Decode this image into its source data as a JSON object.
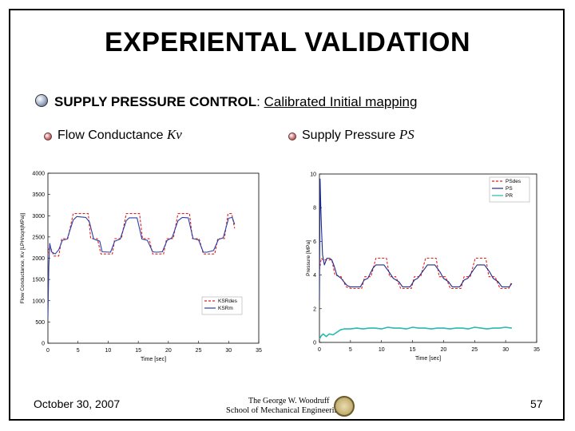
{
  "slide": {
    "title": "EXPERIENTAL VALIDATION",
    "main_label": "SUPPLY PRESSURE CONTROL",
    "main_sep": ": ",
    "main_link": "Calibrated Initial mapping",
    "sub_left_text": "Flow Conductance ",
    "sub_left_symbol": "Kv",
    "sub_right_text": "Supply Pressure ",
    "sub_right_symbol": "PS",
    "date": "October 30, 2007",
    "page": "57",
    "logo_line1": "The George W. Woodruff",
    "logo_line2": "School of Mechanical Engineering"
  },
  "chart_data": [
    {
      "type": "line",
      "xlabel": "Time [sec]",
      "ylabel": "Flow Conductance, Kv [LPH/sqrt(MPa)]",
      "xlim": [
        0,
        35
      ],
      "ylim": [
        0,
        4000
      ],
      "xticks": [
        0,
        5,
        10,
        15,
        20,
        25,
        30,
        35
      ],
      "yticks": [
        0,
        500,
        1000,
        1500,
        2000,
        2500,
        3000,
        3500,
        4000
      ],
      "legend_position": "bottom-right",
      "series": [
        {
          "name": "KSRdes",
          "color": "#e02020",
          "style": "dashed",
          "x": [
            0,
            0.3,
            1,
            1.8,
            2.3,
            3.3,
            4.2,
            4.6,
            6.7,
            7.1,
            8.2,
            8.8,
            10.7,
            11.1,
            12.2,
            13,
            15.2,
            15.7,
            16.8,
            17.4,
            19.2,
            19.7,
            20.8,
            21.6,
            23.5,
            24,
            25.1,
            25.8,
            27.7,
            28.2,
            29.3,
            29.9,
            30.5,
            31
          ],
          "y": [
            2100,
            2300,
            2050,
            2050,
            2460,
            2460,
            3050,
            3050,
            3050,
            2460,
            2460,
            2100,
            2100,
            2460,
            2460,
            3050,
            3050,
            2460,
            2460,
            2100,
            2100,
            2460,
            2460,
            3050,
            3050,
            2460,
            2460,
            2100,
            2100,
            2460,
            2460,
            3050,
            3050,
            2700
          ]
        },
        {
          "name": "KSRm",
          "color": "#2a3ea8",
          "style": "solid",
          "x": [
            0,
            0.15,
            0.3,
            0.6,
            1.2,
            1.8,
            2.4,
            3.2,
            4.2,
            4.8,
            6.3,
            6.9,
            7.6,
            8.6,
            9,
            10.4,
            11.1,
            12,
            13,
            13.5,
            14.8,
            15.6,
            16.5,
            17.4,
            18,
            19,
            19.8,
            20.6,
            21.6,
            22.3,
            23.3,
            24.1,
            25,
            25.8,
            26.4,
            27.5,
            28.3,
            29.1,
            30,
            30.6,
            31
          ],
          "y": [
            600,
            1800,
            2350,
            2150,
            2100,
            2200,
            2420,
            2450,
            2900,
            2980,
            2960,
            2850,
            2450,
            2400,
            2150,
            2140,
            2400,
            2450,
            2880,
            2950,
            2950,
            2450,
            2420,
            2150,
            2140,
            2150,
            2420,
            2480,
            2880,
            2960,
            2950,
            2460,
            2430,
            2140,
            2140,
            2180,
            2440,
            2480,
            2940,
            2960,
            2800
          ]
        }
      ]
    },
    {
      "type": "line",
      "xlabel": "Time [sec]",
      "ylabel": "Pressure [MPa]",
      "xlim": [
        0,
        35
      ],
      "ylim": [
        0,
        10
      ],
      "xticks": [
        0,
        5,
        10,
        15,
        20,
        25,
        30,
        35
      ],
      "yticks": [
        0,
        2,
        4,
        6,
        8,
        10
      ],
      "legend_position": "top-right",
      "series": [
        {
          "name": "PSdes",
          "color": "#e02020",
          "style": "dashed",
          "x": [
            0,
            0.3,
            0.6,
            2,
            2.5,
            3.5,
            4.3,
            5.1,
            6.8,
            7.3,
            8.3,
            9.1,
            10.8,
            11.3,
            12.3,
            13.1,
            14.8,
            15.3,
            16.3,
            17.1,
            18.8,
            19.3,
            20.3,
            21.1,
            22.8,
            23.3,
            24.3,
            25.1,
            26.8,
            27.3,
            28.3,
            29.1,
            30.5,
            31
          ],
          "y": [
            4.3,
            5,
            4.9,
            4.9,
            4,
            3.9,
            3.3,
            3.2,
            3.2,
            3.9,
            3.9,
            5,
            5,
            3.9,
            3.9,
            3.2,
            3.2,
            3.9,
            3.9,
            5,
            5,
            3.9,
            3.9,
            3.2,
            3.2,
            3.9,
            3.9,
            5,
            5,
            3.9,
            3.9,
            3.2,
            3.2,
            3.6
          ]
        },
        {
          "name": "PS",
          "color": "#1c2a8c",
          "style": "solid",
          "x": [
            0,
            0.1,
            0.2,
            0.35,
            0.5,
            0.8,
            1.2,
            1.6,
            2,
            2.4,
            2.8,
            3.5,
            4.4,
            4.9,
            5.3,
            6.6,
            7.2,
            7.8,
            8.6,
            9.1,
            10.4,
            11.2,
            11.9,
            12.8,
            13.4,
            14.6,
            15.3,
            15.8,
            16.8,
            17.4,
            18.6,
            19.4,
            20,
            20.8,
            21.4,
            22.6,
            23.3,
            23.9,
            24.8,
            25.4,
            26.6,
            27.4,
            28,
            28.8,
            29.4,
            30.6,
            31
          ],
          "y": [
            2.5,
            9.7,
            8.2,
            6.6,
            5.2,
            4.6,
            5,
            5,
            4.9,
            4.5,
            4,
            3.8,
            3.4,
            3.3,
            3.3,
            3.3,
            3.7,
            3.8,
            4.4,
            4.6,
            4.6,
            4.2,
            3.8,
            3.6,
            3.3,
            3.3,
            3.7,
            3.8,
            4.3,
            4.6,
            4.6,
            4.2,
            3.8,
            3.6,
            3.3,
            3.3,
            3.7,
            3.8,
            4.3,
            4.6,
            4.6,
            4.2,
            3.8,
            3.6,
            3.3,
            3.3,
            3.5
          ]
        },
        {
          "name": "PR",
          "color": "#2ab8b0",
          "style": "solid",
          "x": [
            0,
            0.3,
            0.6,
            1.1,
            1.6,
            2.2,
            2.8,
            3.4,
            4,
            5,
            6,
            7,
            8,
            9,
            10,
            11,
            12,
            13,
            14,
            15,
            16,
            17,
            18,
            19,
            20,
            21,
            22,
            23,
            24,
            25,
            26,
            27,
            28,
            29,
            30,
            31
          ],
          "y": [
            0.2,
            0.4,
            0.5,
            0.35,
            0.5,
            0.45,
            0.6,
            0.75,
            0.8,
            0.8,
            0.85,
            0.8,
            0.85,
            0.85,
            0.8,
            0.9,
            0.85,
            0.85,
            0.8,
            0.9,
            0.85,
            0.85,
            0.8,
            0.85,
            0.85,
            0.8,
            0.85,
            0.85,
            0.8,
            0.9,
            0.85,
            0.8,
            0.85,
            0.85,
            0.9,
            0.85
          ]
        }
      ]
    }
  ]
}
